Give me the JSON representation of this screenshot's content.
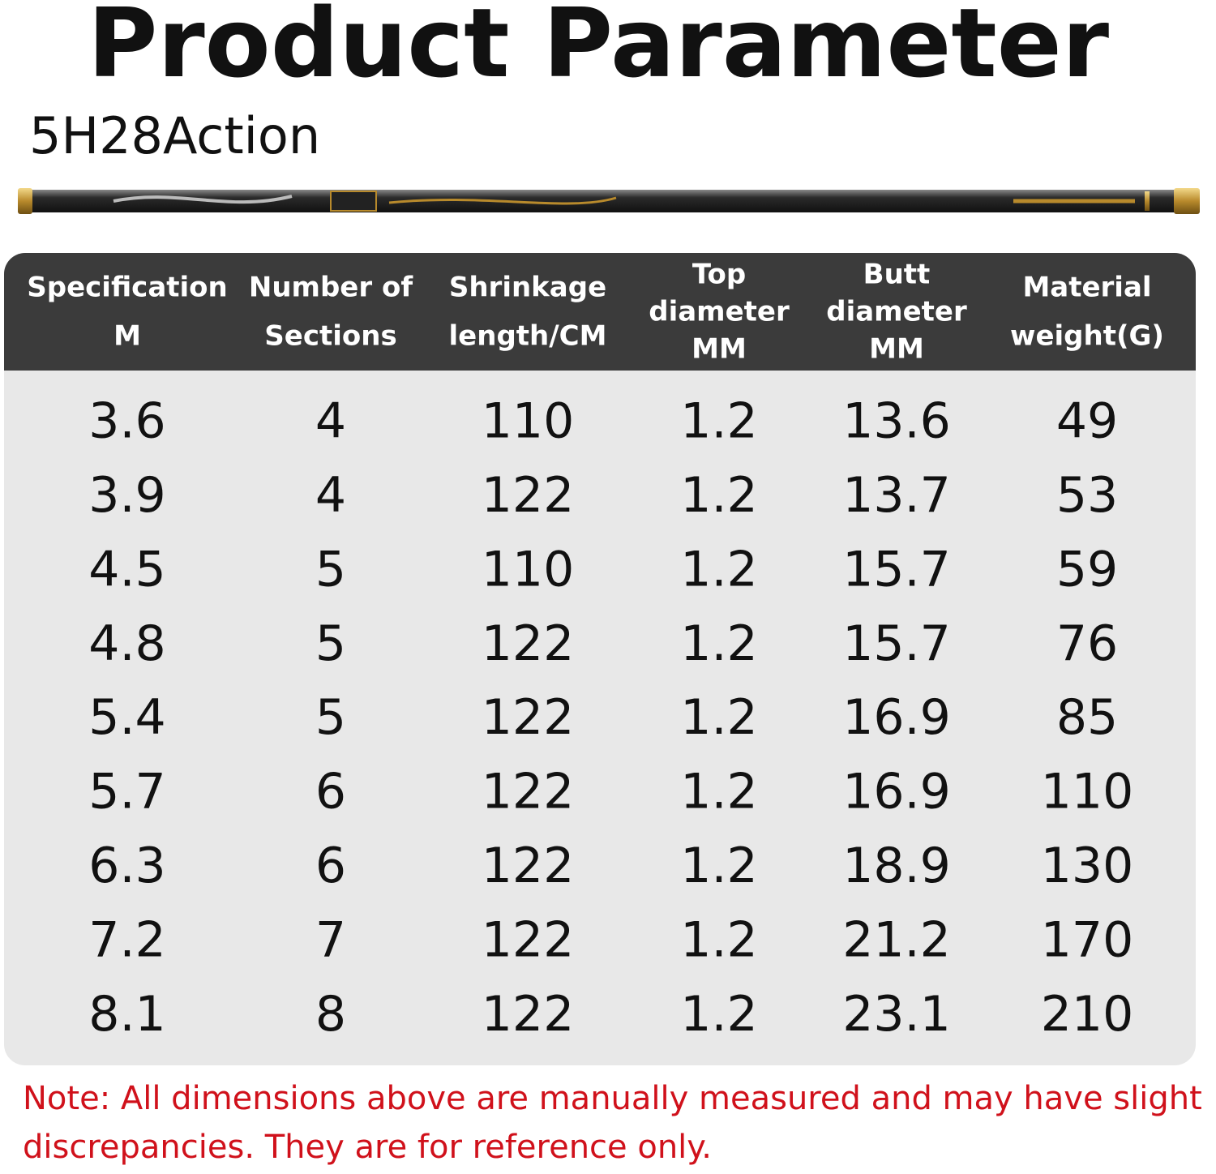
{
  "header": {
    "title": "Product Parameter",
    "subtitle": "5H28Action"
  },
  "table": {
    "columns": [
      [
        "Specification",
        "M"
      ],
      [
        "Number of",
        "Sections"
      ],
      [
        "Shrinkage",
        "length/CM"
      ],
      [
        "Top",
        "diameter",
        "MM"
      ],
      [
        "Butt",
        "diameter",
        "MM"
      ],
      [
        "Material",
        "weight(G)"
      ]
    ],
    "rows": [
      [
        3.6,
        4,
        110,
        1.2,
        13.6,
        49
      ],
      [
        3.9,
        4,
        122,
        1.2,
        13.7,
        53
      ],
      [
        4.5,
        5,
        110,
        1.2,
        15.7,
        59
      ],
      [
        4.8,
        5,
        122,
        1.2,
        15.7,
        76
      ],
      [
        5.4,
        5,
        122,
        1.2,
        16.9,
        85
      ],
      [
        5.7,
        6,
        122,
        1.2,
        16.9,
        110
      ],
      [
        6.3,
        6,
        122,
        1.2,
        18.9,
        130
      ],
      [
        7.2,
        7,
        122,
        1.2,
        21.2,
        170
      ],
      [
        8.1,
        8,
        122,
        1.2,
        23.1,
        210
      ]
    ]
  },
  "note": [
    "Note: All dimensions above are manually measured and may have slight",
    "discrepancies. They are for reference only."
  ]
}
